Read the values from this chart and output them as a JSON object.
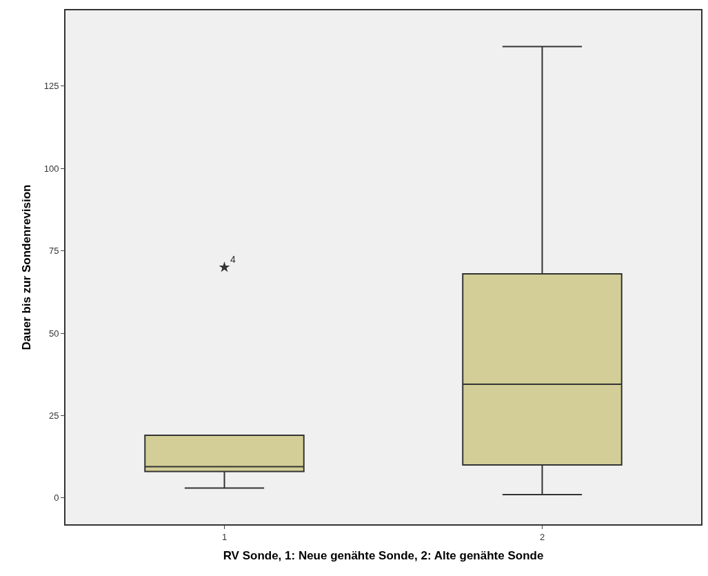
{
  "chart_data": {
    "type": "box",
    "xlabel": "RV Sonde, 1: Neue genähte Sonde, 2: Alte genähte Sonde",
    "ylabel": "Dauer bis zur Sondenrevision",
    "categories": [
      "1",
      "2"
    ],
    "ylim": [
      -8,
      148
    ],
    "yticks": [
      0,
      25,
      50,
      75,
      100,
      125
    ],
    "grid": false,
    "series": [
      {
        "color": "#d3ce97",
        "boxes": [
          {
            "low": 3,
            "q1": 8,
            "median": 9.5,
            "q3": 19,
            "high": 19
          },
          {
            "low": 1,
            "q1": 10,
            "median": 34.5,
            "q3": 68,
            "high": 137
          }
        ]
      },
      {
        "type": "scatter",
        "color": "#333333",
        "marker": "star",
        "x": [
          "1"
        ],
        "values": [
          70
        ]
      }
    ],
    "annotations": [
      {
        "text": "4",
        "x": "1",
        "y": 70
      }
    ]
  }
}
